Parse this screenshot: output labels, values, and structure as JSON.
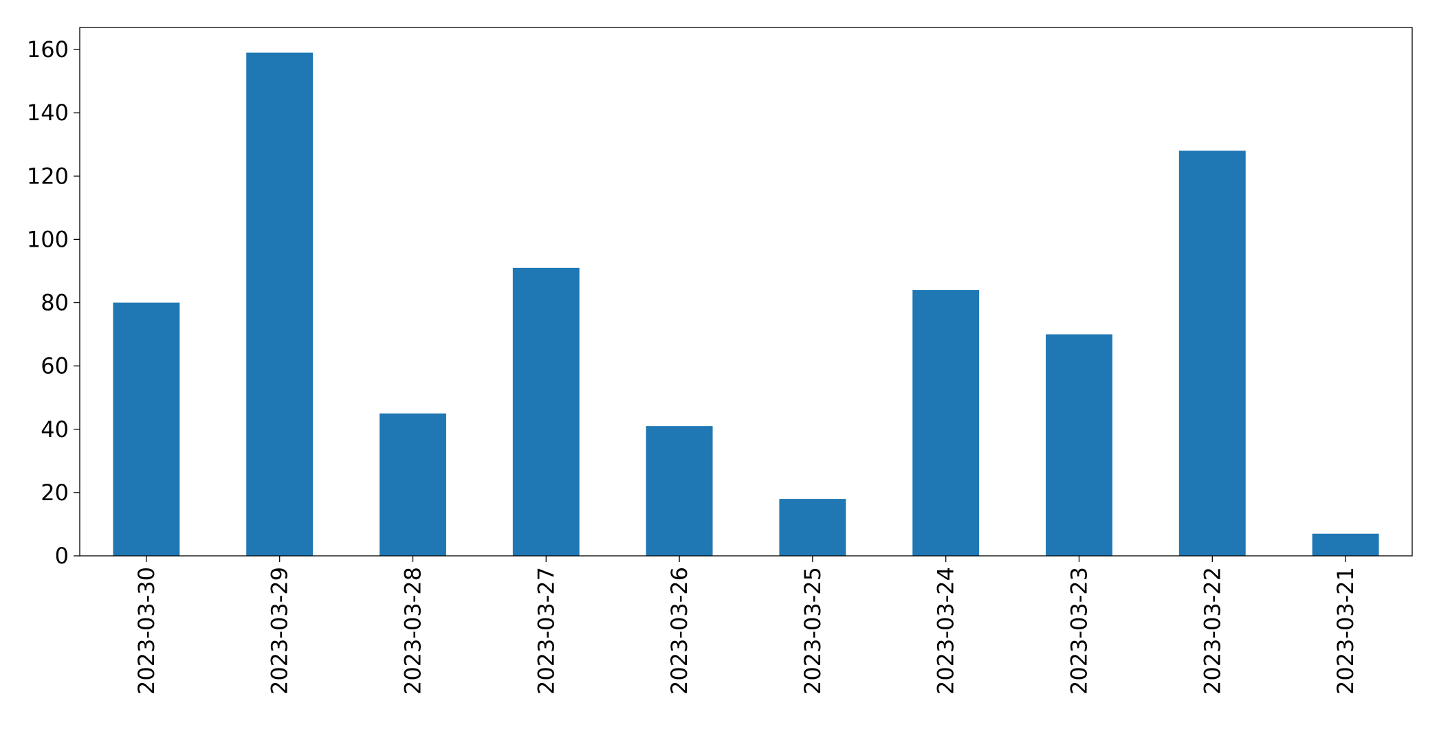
{
  "chart_data": {
    "type": "bar",
    "categories": [
      "2023-03-30",
      "2023-03-29",
      "2023-03-28",
      "2023-03-27",
      "2023-03-26",
      "2023-03-25",
      "2023-03-24",
      "2023-03-23",
      "2023-03-22",
      "2023-03-21"
    ],
    "values": [
      80,
      159,
      45,
      91,
      41,
      18,
      84,
      70,
      128,
      7
    ],
    "color": "#1f77b4",
    "ylim": [
      0,
      166.95
    ],
    "yticks": [
      0,
      20,
      40,
      60,
      80,
      100,
      120,
      140,
      160
    ],
    "grid": false
  }
}
